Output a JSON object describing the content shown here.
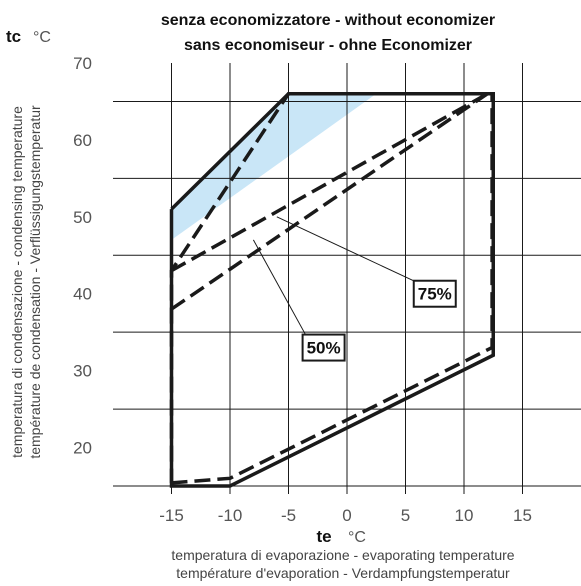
{
  "chart_data": {
    "type": "line",
    "title_lines": [
      "senza economizzatore  -  without economizer",
      "sans economiseur  -  ohne Economizer"
    ],
    "x_axis": {
      "name": "te",
      "unit": "°C",
      "range": [
        -20,
        20
      ],
      "ticks": [
        -15,
        -10,
        -5,
        0,
        5,
        10,
        15
      ],
      "tick_labels": [
        "-15",
        "-10",
        "-5",
        "0",
        "5",
        "10",
        "15"
      ],
      "description": [
        "temperatura di evaporazione  -    evaporating temperature",
        "température d'evaporation  -  Verdampfungstemperatur"
      ]
    },
    "y_axis": {
      "name": "tc",
      "unit": "°C",
      "range": [
        15,
        70
      ],
      "ticks": [
        20,
        30,
        40,
        50,
        60,
        70
      ],
      "tick_labels": [
        "20",
        "30",
        "40",
        "50",
        "60",
        "70"
      ],
      "description": [
        "temperatura di condensazione - condensing temperature",
        "température de condensation - Verflüssigungstemperatur"
      ]
    },
    "grid": {
      "horizontal": [
        25,
        35,
        45,
        55,
        65
      ],
      "vertical": [
        -15,
        -10,
        -5,
        0,
        5,
        10,
        15
      ]
    },
    "series": [
      {
        "style": "solid",
        "color": "#1a1a1a",
        "points": [
          [
            -15,
            51
          ],
          [
            -5,
            66
          ],
          [
            12.5,
            66
          ],
          [
            12.5,
            32
          ],
          [
            -10,
            15
          ],
          [
            -15,
            15
          ],
          [
            -15,
            51
          ]
        ]
      },
      {
        "style": "dashed",
        "color": "#1a1a1a",
        "points": [
          [
            -15,
            15.4
          ],
          [
            -10,
            16
          ],
          [
            12.4,
            33
          ],
          [
            12.4,
            66
          ],
          [
            -5,
            66
          ],
          [
            -15,
            43
          ],
          [
            -15,
            15.4
          ]
        ]
      },
      {
        "name": "75%",
        "style": "dashed",
        "color": "#1a1a1a",
        "points": [
          [
            -15,
            43
          ],
          [
            12,
            66
          ]
        ]
      },
      {
        "name": "50%",
        "style": "dashed",
        "color": "#1a1a1a",
        "points": [
          [
            -15,
            38
          ],
          [
            12,
            66
          ]
        ]
      }
    ],
    "shaded_region": {
      "color": "#c9e6f7",
      "points": [
        [
          -15,
          51
        ],
        [
          -5,
          66
        ],
        [
          2.5,
          66
        ],
        [
          -15,
          47
        ]
      ]
    },
    "annotations": [
      {
        "text": "75%",
        "target": [
          -6,
          50
        ],
        "box": [
          7.5,
          40
        ]
      },
      {
        "text": "50%",
        "target": [
          -8,
          47
        ],
        "box": [
          -2,
          33
        ]
      }
    ]
  }
}
